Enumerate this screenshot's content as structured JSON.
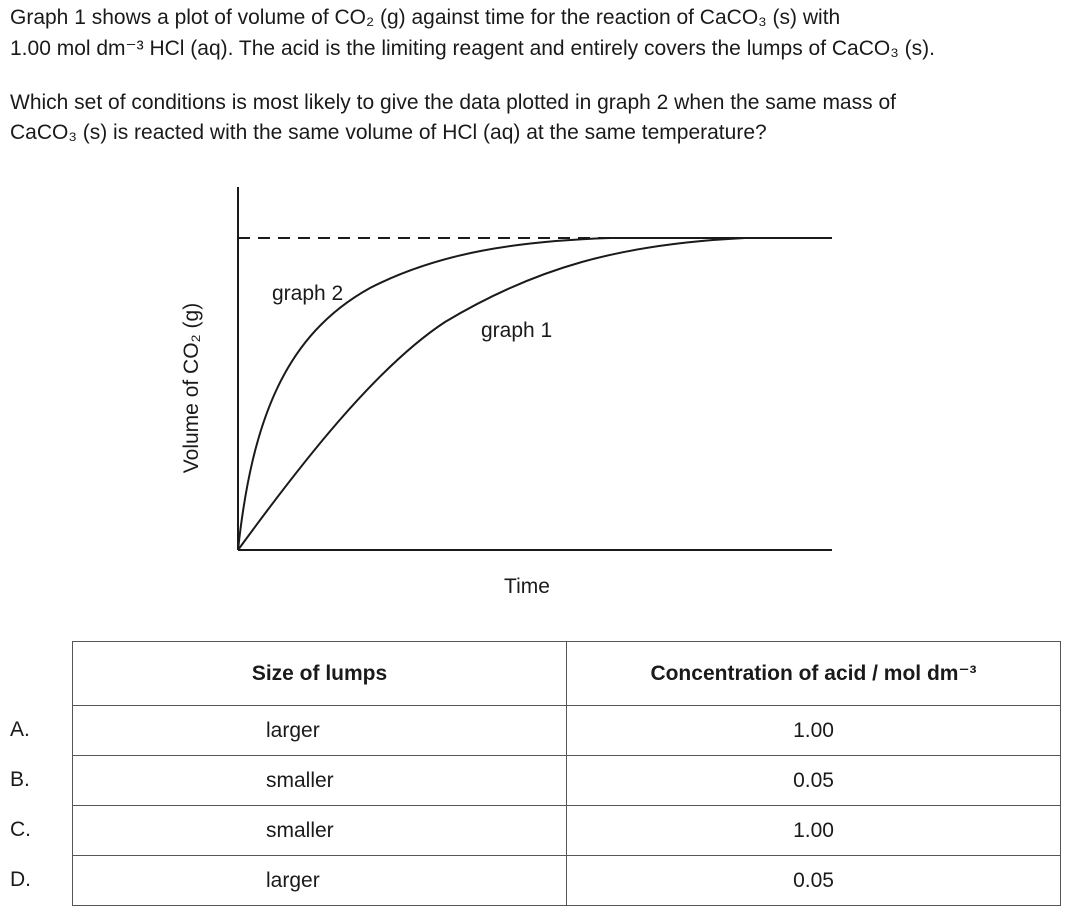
{
  "question": {
    "paragraphs": [
      [
        "Graph 1 shows a plot of volume of CO₂ (g) against time for the reaction of CaCO₃ (s) with",
        "1.00 mol dm⁻³ HCl (aq).  The acid is the limiting reagent and entirely covers the lumps of CaCO₃ (s)."
      ],
      [
        "Which set of conditions is most likely to give the data plotted in graph 2 when the same mass of",
        "CaCO₃ (s) is reacted with the same volume of HCl (aq) at the same temperature?"
      ]
    ]
  },
  "figure": {
    "y_axis_label": "Volume of CO₂ (g)",
    "x_axis_label": "Time",
    "curve_labels": [
      "graph 2",
      "graph 1"
    ]
  },
  "table": {
    "headers": [
      "Size of lumps",
      "Concentration of acid / mol dm⁻³"
    ],
    "rows": [
      {
        "option": "A.",
        "size": "larger",
        "concentration": "1.00"
      },
      {
        "option": "B.",
        "size": "smaller",
        "concentration": "0.05"
      },
      {
        "option": "C.",
        "size": "smaller",
        "concentration": "1.00"
      },
      {
        "option": "D.",
        "size": "larger",
        "concentration": "0.05"
      }
    ]
  }
}
